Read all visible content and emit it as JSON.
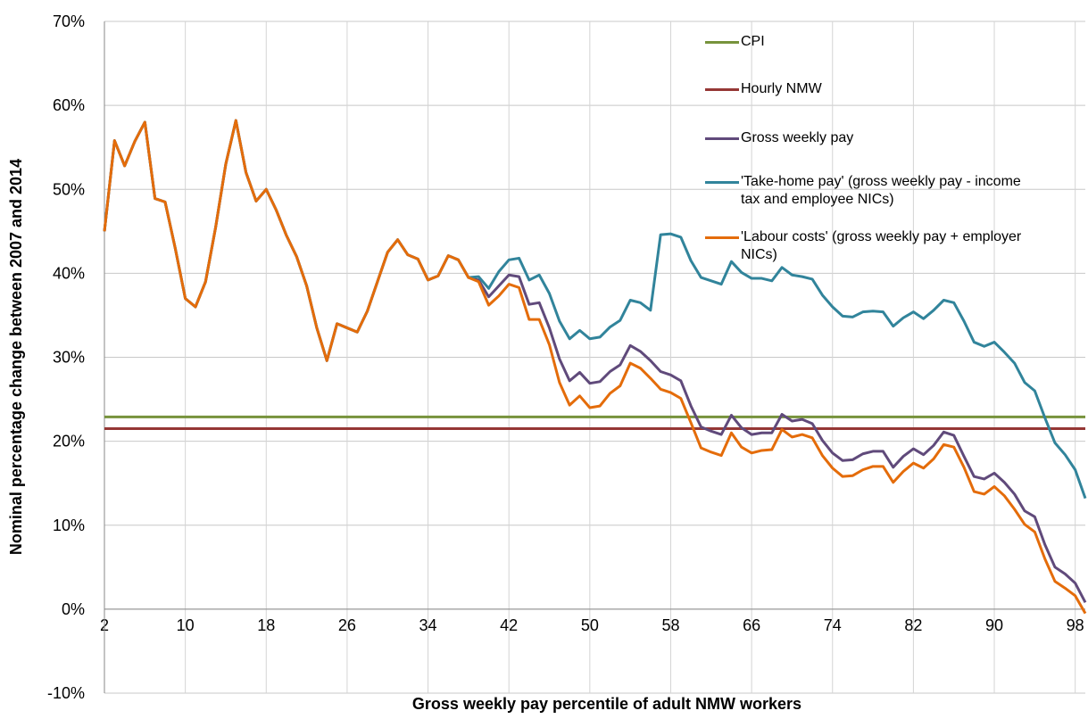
{
  "chart_data": {
    "type": "line",
    "x_label": "Gross weekly pay percentile of adult NMW workers",
    "y_label": "Nominal percentage change between 2007 and 2014",
    "x": [
      2,
      3,
      4,
      5,
      6,
      7,
      8,
      9,
      10,
      11,
      12,
      13,
      14,
      15,
      16,
      17,
      18,
      19,
      20,
      21,
      22,
      23,
      24,
      25,
      26,
      27,
      28,
      29,
      30,
      31,
      32,
      33,
      34,
      35,
      36,
      37,
      38,
      39,
      40,
      41,
      42,
      43,
      44,
      45,
      46,
      47,
      48,
      49,
      50,
      51,
      52,
      53,
      54,
      55,
      56,
      57,
      58,
      59,
      60,
      61,
      62,
      63,
      64,
      65,
      66,
      67,
      68,
      69,
      70,
      71,
      72,
      73,
      74,
      75,
      76,
      77,
      78,
      79,
      80,
      81,
      82,
      83,
      84,
      85,
      86,
      87,
      88,
      89,
      90,
      91,
      92,
      93,
      94,
      95,
      96,
      97,
      98,
      99
    ],
    "xlim": [
      2,
      99
    ],
    "xticks": [
      2,
      10,
      18,
      26,
      34,
      42,
      50,
      58,
      66,
      74,
      82,
      90,
      98
    ],
    "ylim": [
      -10,
      70
    ],
    "yticks": [
      {
        "value": -10,
        "label": "-10%"
      },
      {
        "value": 0,
        "label": "0%"
      },
      {
        "value": 10,
        "label": "10%"
      },
      {
        "value": 20,
        "label": "20%"
      },
      {
        "value": 30,
        "label": "30%"
      },
      {
        "value": 40,
        "label": "40%"
      },
      {
        "value": 50,
        "label": "50%"
      },
      {
        "value": 60,
        "label": "60%"
      },
      {
        "value": 70,
        "label": "70%"
      }
    ],
    "grid": true,
    "legend": "top-right",
    "series": [
      {
        "name": "CPI",
        "color": "#77933c",
        "x": [
          2,
          99
        ],
        "values": [
          22.9,
          22.9
        ]
      },
      {
        "name": "Hourly NMW",
        "color": "#953735",
        "x": [
          2,
          99
        ],
        "values": [
          21.5,
          21.5
        ]
      },
      {
        "name": "Gross weekly pay",
        "color": "#604a7b",
        "values": [
          45,
          55.8,
          52.8,
          55.7,
          58,
          48.9,
          48.5,
          43,
          37,
          36,
          39,
          45.5,
          53,
          58.2,
          52,
          48.6,
          50,
          47.5,
          44.5,
          42,
          38.5,
          33.5,
          29.6,
          34,
          33.5,
          33,
          35.5,
          39,
          42.5,
          44,
          42.2,
          41.7,
          39.2,
          39.7,
          42.1,
          41.6,
          39.5,
          39.2,
          37.2,
          38.5,
          39.8,
          39.6,
          36.3,
          36.5,
          33.5,
          29.8,
          27.2,
          28.2,
          26.9,
          27.1,
          28.3,
          29.1,
          31.4,
          30.7,
          29.6,
          28.3,
          27.9,
          27.2,
          24.2,
          21.7,
          21.2,
          20.8,
          23.1,
          21.6,
          20.8,
          21,
          21,
          23.2,
          22.4,
          22.6,
          22.1,
          20.1,
          18.6,
          17.7,
          17.8,
          18.5,
          18.8,
          18.8,
          16.9,
          18.2,
          19.1,
          18.4,
          19.5,
          21.1,
          20.7,
          18.2,
          15.8,
          15.5,
          16.2,
          15.1,
          13.7,
          11.7,
          11,
          7.7,
          5,
          4.2,
          3.1,
          0.8
        ]
      },
      {
        "name": "'Take-home pay' (gross weekly pay - income tax and employee NICs)",
        "color": "#31849b",
        "values": [
          45,
          55.8,
          52.8,
          55.7,
          58,
          48.9,
          48.5,
          43,
          37,
          36,
          39,
          45.5,
          53,
          58.2,
          52,
          48.6,
          50,
          47.5,
          44.5,
          42,
          38.5,
          33.5,
          29.6,
          34,
          33.5,
          33,
          35.5,
          39,
          42.5,
          44,
          42.2,
          41.7,
          39.2,
          39.7,
          42.1,
          41.6,
          39.5,
          39.6,
          38.2,
          40.2,
          41.6,
          41.8,
          39.2,
          39.8,
          37.6,
          34.3,
          32.2,
          33.2,
          32.2,
          32.4,
          33.6,
          34.4,
          36.8,
          36.5,
          35.6,
          44.6,
          44.7,
          44.3,
          41.5,
          39.5,
          39.1,
          38.7,
          41.4,
          40.1,
          39.4,
          39.4,
          39.1,
          40.7,
          39.8,
          39.6,
          39.3,
          37.4,
          36,
          34.9,
          34.8,
          35.4,
          35.5,
          35.4,
          33.7,
          34.7,
          35.4,
          34.6,
          35.6,
          36.8,
          36.5,
          34.3,
          31.8,
          31.3,
          31.8,
          30.6,
          29.3,
          27,
          26,
          22.8,
          19.8,
          18.4,
          16.6,
          13.2
        ]
      },
      {
        "name": "'Labour costs' (gross weekly pay + employer NICs)",
        "color": "#e46c0a",
        "values": [
          45,
          55.8,
          52.8,
          55.7,
          58,
          48.9,
          48.5,
          43,
          37,
          36,
          39,
          45.5,
          53,
          58.2,
          52,
          48.6,
          50,
          47.5,
          44.5,
          42,
          38.5,
          33.5,
          29.6,
          34,
          33.5,
          33,
          35.5,
          39,
          42.5,
          44,
          42.2,
          41.7,
          39.2,
          39.7,
          42.1,
          41.6,
          39.5,
          39,
          36.2,
          37.3,
          38.7,
          38.3,
          34.5,
          34.5,
          31.5,
          27,
          24.3,
          25.4,
          24,
          24.2,
          25.7,
          26.6,
          29.3,
          28.7,
          27.5,
          26.2,
          25.8,
          25.1,
          22.2,
          19.2,
          18.7,
          18.3,
          21,
          19.3,
          18.6,
          18.9,
          19,
          21.4,
          20.5,
          20.8,
          20.4,
          18.3,
          16.8,
          15.8,
          15.9,
          16.6,
          17,
          17,
          15.1,
          16.4,
          17.4,
          16.8,
          17.9,
          19.6,
          19.3,
          16.9,
          14,
          13.7,
          14.6,
          13.5,
          11.9,
          10.1,
          9.2,
          6,
          3.3,
          2.5,
          1.6,
          -0.5
        ]
      }
    ]
  }
}
